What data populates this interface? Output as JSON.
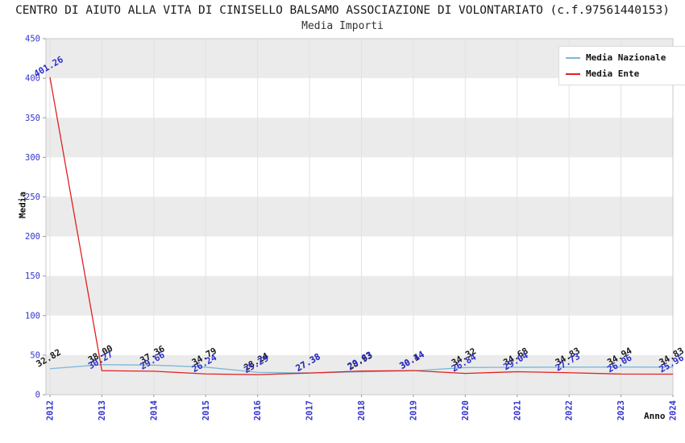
{
  "chart_data": {
    "type": "line",
    "title": "CENTRO DI AIUTO ALLA VITA DI CINISELLO BALSAMO ASSOCIAZIONE DI VOLONTARIATO (c.f.97561440153)",
    "subtitle": "Media Importi",
    "xlabel": "Anno",
    "ylabel": "Media",
    "x": [
      2012,
      2013,
      2014,
      2015,
      2016,
      2017,
      2018,
      2019,
      2020,
      2021,
      2022,
      2023,
      2024
    ],
    "series": [
      {
        "name": "Media Nazionale",
        "color": "#7db8d8",
        "label_color": "#1a1a1a",
        "values": [
          32.82,
          38.0,
          37.36,
          34.79,
          28.24,
          27.38,
          28.93,
          30.14,
          34.32,
          34.68,
          34.83,
          34.94,
          34.83
        ]
      },
      {
        "name": "Media Ente",
        "color": "#e22020",
        "label_color": "#2d2dcc",
        "values": [
          401.26,
          30.27,
          29.66,
          26.24,
          25.29,
          27.38,
          29.83,
          30.44,
          26.84,
          29.04,
          27.73,
          26.06,
          25.96
        ]
      }
    ],
    "ylim": [
      0,
      450
    ],
    "ytick_step": 50,
    "yticks": [
      0,
      50,
      100,
      150,
      200,
      250,
      300,
      350,
      400,
      450
    ],
    "grid": "alternating-horizontal-bands",
    "legend_position": "top-right",
    "tick_color": "#3434d0",
    "band_color": "#ebebeb",
    "vgrid_color": "#e2e2e2",
    "frame_color": "#c8c8c8"
  }
}
